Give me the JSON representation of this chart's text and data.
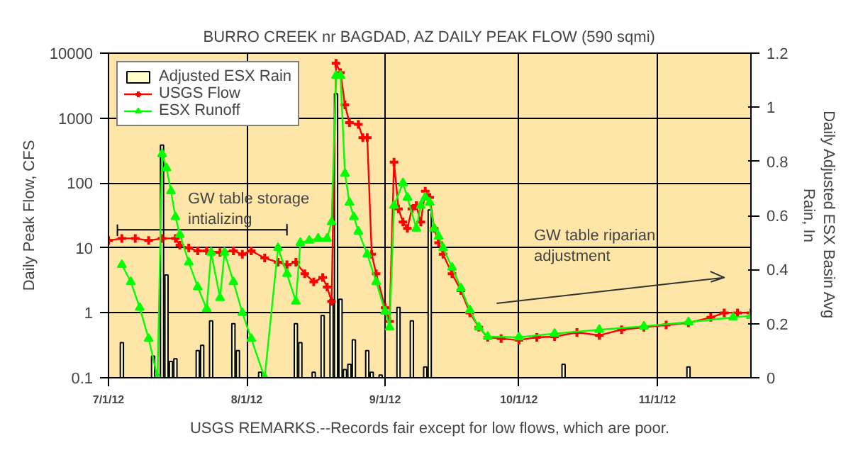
{
  "chart_data": {
    "type": "line",
    "title": "BURRO CREEK nr BAGDAD, AZ DAILY PEAK FLOW (590 sqmi)",
    "ylabel": "Daily Peak Flow, CFS",
    "y2label": "Daily Adjusted ESX Basin Avg\nRain, In",
    "annotations": [
      "GW table storage\nintializing",
      "GW table riparian\nadjustment",
      "USGS REMARKS.--Records fair except for low flows, which are poor."
    ],
    "log": true,
    "grid": true,
    "legend": "top left",
    "xlim": [
      "2012-07-01",
      "2012-11-22"
    ],
    "xticks": [
      {
        "value": "2012-07-01",
        "label": "7/1/12"
      },
      {
        "value": "2012-08-01",
        "label": "8/1/12"
      },
      {
        "value": "2012-09-01",
        "label": "9/1/12"
      },
      {
        "value": "2012-10-01",
        "label": "10/1/12"
      },
      {
        "value": "2012-11-01",
        "label": "11/1/12"
      }
    ],
    "ylim": [
      0.1,
      10000
    ],
    "yticks": [
      0.1,
      1,
      10,
      100,
      1000,
      10000
    ],
    "y2lim": [
      0,
      1.2
    ],
    "y2ticks": [
      0,
      0.2,
      0.4,
      0.6,
      0.8,
      1,
      1.2
    ],
    "series": [
      {
        "name": "Adjusted ESX Rain",
        "type": "bar",
        "axis": "y2",
        "color": "#ffffcc",
        "x": [
          "2012-07-04",
          "2012-07-11",
          "2012-07-13",
          "2012-07-14",
          "2012-07-15",
          "2012-07-16",
          "2012-07-21",
          "2012-07-22",
          "2012-07-24",
          "2012-07-29",
          "2012-07-30",
          "2012-08-04",
          "2012-08-12",
          "2012-08-13",
          "2012-08-16",
          "2012-08-18",
          "2012-08-20",
          "2012-08-21",
          "2012-08-22",
          "2012-08-23",
          "2012-08-24",
          "2012-08-25",
          "2012-08-28",
          "2012-08-29",
          "2012-08-31",
          "2012-09-04",
          "2012-09-07",
          "2012-09-10",
          "2012-09-11",
          "2012-10-11",
          "2012-11-08"
        ],
        "values": [
          0.13,
          0.08,
          0.86,
          0.38,
          0.06,
          0.07,
          0.1,
          0.12,
          0.21,
          0.2,
          0.1,
          0.02,
          0.2,
          0.13,
          0.02,
          0.23,
          0.29,
          1.05,
          0.29,
          0.03,
          0.05,
          0.14,
          0.1,
          0.02,
          0.01,
          0.26,
          0.21,
          0.04,
          0.62,
          0.05,
          0.04
        ]
      },
      {
        "name": "USGS Flow",
        "marker": "cross",
        "color": "#ff0000",
        "x": [
          "2012-07-01",
          "2012-07-04",
          "2012-07-07",
          "2012-07-10",
          "2012-07-13",
          "2012-07-16",
          "2012-07-17",
          "2012-07-19",
          "2012-07-21",
          "2012-07-23",
          "2012-07-26",
          "2012-07-29",
          "2012-07-31",
          "2012-08-02",
          "2012-08-05",
          "2012-08-08",
          "2012-08-10",
          "2012-08-12",
          "2012-08-14",
          "2012-08-16",
          "2012-08-18",
          "2012-08-19",
          "2012-08-20",
          "2012-08-21",
          "2012-08-22",
          "2012-08-23",
          "2012-08-24",
          "2012-08-26",
          "2012-08-27",
          "2012-08-28",
          "2012-08-29",
          "2012-08-30",
          "2012-09-01",
          "2012-09-02",
          "2012-09-03",
          "2012-09-04",
          "2012-09-05",
          "2012-09-06",
          "2012-09-07",
          "2012-09-08",
          "2012-09-09",
          "2012-09-10",
          "2012-09-11",
          "2012-09-12",
          "2012-09-13",
          "2012-09-14",
          "2012-09-16",
          "2012-09-18",
          "2012-09-20",
          "2012-09-22",
          "2012-09-24",
          "2012-09-27",
          "2012-10-01",
          "2012-10-05",
          "2012-10-09",
          "2012-10-14",
          "2012-10-19",
          "2012-10-24",
          "2012-10-29",
          "2012-11-03",
          "2012-11-08",
          "2012-11-13",
          "2012-11-16",
          "2012-11-19",
          "2012-11-22"
        ],
        "values": [
          13,
          14,
          14,
          13,
          14,
          14,
          11,
          10,
          9,
          9,
          8.5,
          9,
          8,
          9,
          7,
          6,
          5.5,
          6,
          4,
          3,
          3.5,
          2.5,
          1.5,
          7000,
          5000,
          1600,
          850,
          800,
          500,
          500,
          8,
          4,
          1.2,
          0.74,
          210,
          40,
          25,
          20,
          40,
          45,
          25,
          75,
          60,
          20,
          12,
          8,
          4,
          2.2,
          1.0,
          0.6,
          0.42,
          0.4,
          0.38,
          0.42,
          0.43,
          0.5,
          0.45,
          0.55,
          0.6,
          0.65,
          0.7,
          0.85,
          1.0,
          1.0,
          1.0
        ]
      },
      {
        "color": "#000000",
        "x": [
          "2012-07-03",
          "2012-07-03",
          "2012-07-03",
          "2012-08-10",
          "2012-08-10",
          "2012-08-10"
        ],
        "values": [
          23,
          15.5,
          19,
          19,
          23,
          15.5
        ]
      },
      {
        "color": "#333333",
        "x": [
          "2012-09-26",
          "2012-11-16",
          "2012-11-13",
          "2012-11-16",
          "2012-11-13"
        ],
        "values": [
          1.4,
          3.5,
          4.3,
          3.5,
          3.0
        ]
      },
      {
        "name": "ESX Runoff",
        "marker": "triangle",
        "color": "#00ff00",
        "x": [
          "2012-07-04",
          "2012-07-06",
          "2012-07-08",
          "2012-07-10",
          "2012-07-12",
          "2012-07-13",
          "2012-07-14",
          "2012-07-15",
          "2012-07-16",
          "2012-07-17",
          "2012-07-19",
          "2012-07-21",
          "2012-07-23",
          "2012-07-24",
          "2012-07-26",
          "2012-07-27",
          "2012-07-29",
          "2012-07-31",
          "2012-08-02",
          "2012-08-05",
          "2012-08-08",
          "2012-08-10",
          "2012-08-12",
          "2012-08-13",
          "2012-08-15",
          "2012-08-17",
          "2012-08-19",
          "2012-08-20",
          "2012-08-21",
          "2012-08-22",
          "2012-08-23",
          "2012-08-24",
          "2012-08-25",
          "2012-08-26",
          "2012-08-28",
          "2012-08-30",
          "2012-09-01",
          "2012-09-02",
          "2012-09-03",
          "2012-09-05",
          "2012-09-06",
          "2012-09-08",
          "2012-09-09",
          "2012-09-10",
          "2012-09-11",
          "2012-09-12",
          "2012-09-13",
          "2012-09-14",
          "2012-09-16",
          "2012-09-18",
          "2012-09-20",
          "2012-09-22",
          "2012-09-24",
          "2012-10-01",
          "2012-10-09",
          "2012-10-19",
          "2012-10-29",
          "2012-11-08",
          "2012-11-18",
          "2012-11-22"
        ],
        "values": [
          5.5,
          3,
          1.2,
          0.4,
          0.1,
          280,
          170,
          75,
          30,
          16,
          6,
          2.5,
          1.15,
          8.5,
          1.7,
          8.5,
          3,
          1,
          0.4,
          0.1,
          10,
          4,
          1.5,
          12,
          13,
          14,
          14,
          25,
          4500,
          4500,
          140,
          50,
          30,
          18,
          8,
          3,
          1.05,
          0.6,
          45,
          100,
          60,
          20,
          45,
          60,
          50,
          20,
          15,
          10,
          5,
          2.4,
          1.1,
          0.6,
          0.43,
          0.42,
          0.48,
          0.55,
          0.62,
          0.72,
          0.85,
          0.9
        ]
      }
    ]
  }
}
